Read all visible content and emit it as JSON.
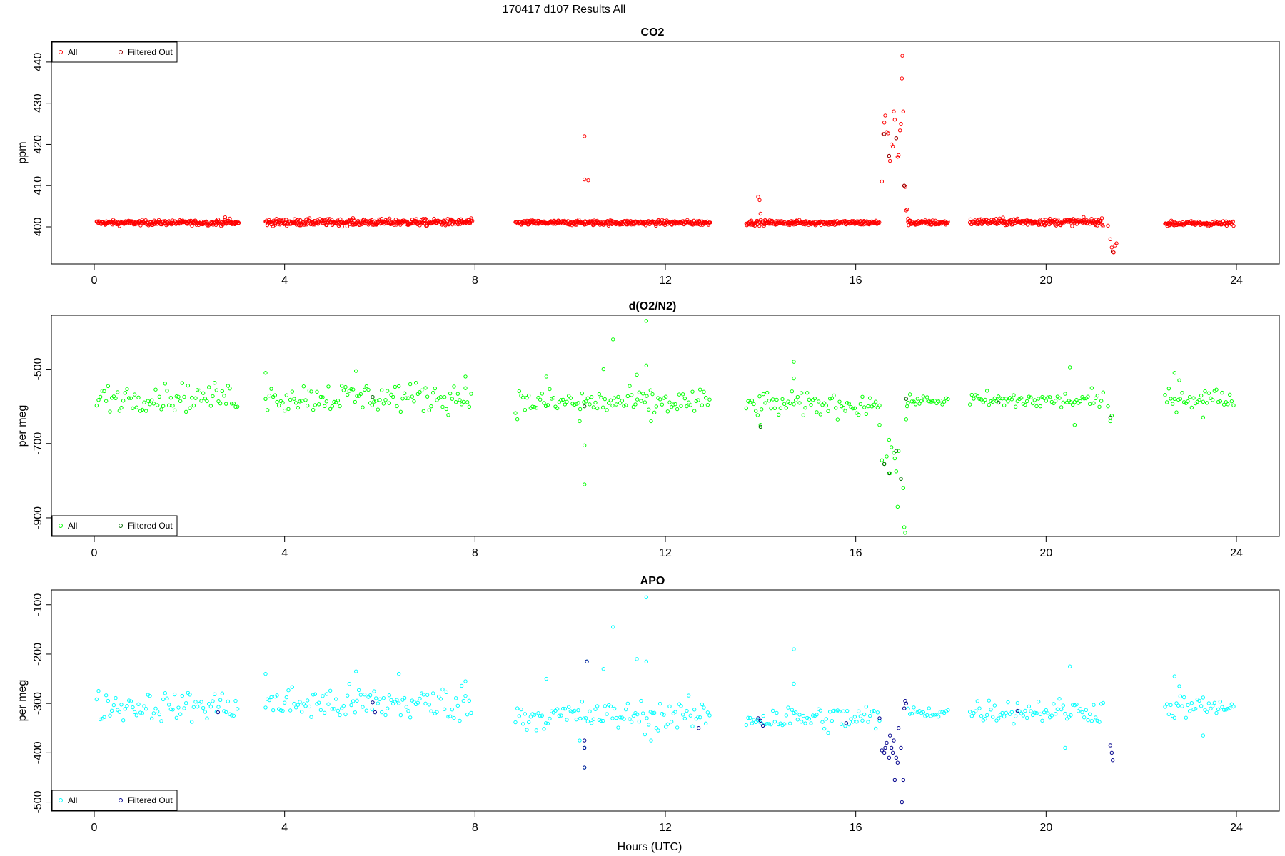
{
  "figure": {
    "title": "170417   d107   Results All",
    "xlabel": "Hours (UTC)"
  },
  "chart_data": [
    {
      "type": "scatter",
      "title": "CO2",
      "ylabel": "ppm",
      "xlim": [
        -0.9,
        24.9
      ],
      "ylim": [
        391,
        445
      ],
      "xticks": [
        0,
        4,
        8,
        12,
        16,
        20,
        24
      ],
      "yticks": [
        400,
        410,
        420,
        430,
        440
      ],
      "legend_position": "top-left",
      "series": [
        {
          "name": "All",
          "color": "#ff0000",
          "segments": [
            {
              "start": 0.05,
              "end": 3.05,
              "base": 401,
              "noise": 0.3,
              "step": 0.012
            },
            {
              "start": 3.6,
              "end": 7.95,
              "base": 401.1,
              "noise": 0.4,
              "step": 0.012
            },
            {
              "start": 8.85,
              "end": 12.95,
              "base": 401,
              "noise": 0.3,
              "step": 0.012
            },
            {
              "start": 13.7,
              "end": 16.5,
              "base": 401,
              "noise": 0.3,
              "step": 0.012
            },
            {
              "start": 17.1,
              "end": 17.95,
              "base": 401,
              "noise": 0.3,
              "step": 0.012
            },
            {
              "start": 18.4,
              "end": 21.2,
              "base": 401.2,
              "noise": 0.4,
              "step": 0.012
            },
            {
              "start": 22.5,
              "end": 23.95,
              "base": 400.8,
              "noise": 0.3,
              "step": 0.012
            }
          ],
          "points": [
            [
              2.6,
              401.8
            ],
            [
              2.75,
              402.3
            ],
            [
              2.85,
              402
            ],
            [
              5.8,
              401.5
            ],
            [
              6.4,
              401.4
            ],
            [
              12.6,
              401.5
            ],
            [
              19,
              401.4
            ],
            [
              19.4,
              402
            ],
            [
              10.3,
              422
            ],
            [
              10.3,
              411.5
            ],
            [
              10.38,
              411.3
            ],
            [
              13.95,
              407.3
            ],
            [
              13.98,
              406.5
            ],
            [
              14.0,
              403.2
            ],
            [
              16.55,
              411
            ],
            [
              16.58,
              422.5
            ],
            [
              16.6,
              425.3
            ],
            [
              16.62,
              427
            ],
            [
              16.65,
              423
            ],
            [
              16.68,
              422.7
            ],
            [
              16.7,
              417.2
            ],
            [
              16.72,
              416
            ],
            [
              16.75,
              420
            ],
            [
              16.78,
              419.5
            ],
            [
              16.8,
              428
            ],
            [
              16.82,
              426
            ],
            [
              16.85,
              421.5
            ],
            [
              16.88,
              417
            ],
            [
              16.9,
              417.4
            ],
            [
              16.93,
              423.4
            ],
            [
              16.95,
              425
            ],
            [
              16.97,
              436
            ],
            [
              16.98,
              441.5
            ],
            [
              17.0,
              428
            ],
            [
              17.02,
              410
            ],
            [
              17.04,
              409.7
            ],
            [
              17.06,
              404
            ],
            [
              17.08,
              404.2
            ],
            [
              17.1,
              402
            ],
            [
              21.3,
              400.3
            ],
            [
              21.35,
              397
            ],
            [
              21.38,
              395
            ],
            [
              21.4,
              394
            ],
            [
              21.42,
              393.8
            ],
            [
              21.45,
              395.5
            ],
            [
              21.48,
              396
            ]
          ]
        },
        {
          "name": "Filtered Out",
          "color": "#8b0000",
          "segments": [],
          "points": [
            [
              16.6,
              422.5
            ],
            [
              16.7,
              417.2
            ],
            [
              16.85,
              421.5
            ],
            [
              17.02,
              410
            ],
            [
              21.4,
              394
            ]
          ]
        }
      ]
    },
    {
      "type": "scatter",
      "title": "d(O2/N2)",
      "ylabel": "per meg",
      "xlim": [
        -0.9,
        24.9
      ],
      "ylim": [
        -950,
        -355
      ],
      "xticks": [
        0,
        4,
        8,
        12,
        16,
        20,
        24
      ],
      "yticks": [
        -500,
        -700,
        -900
      ],
      "legend_position": "bottom-left",
      "series": [
        {
          "name": "All",
          "color": "#00ff00",
          "segments": [
            {
              "start": 0.05,
              "end": 3.05,
              "base": -575,
              "noise": 18,
              "step": 0.04
            },
            {
              "start": 3.6,
              "end": 7.95,
              "base": -575,
              "noise": 20,
              "step": 0.04
            },
            {
              "start": 8.85,
              "end": 12.95,
              "base": -590,
              "noise": 18,
              "step": 0.04
            },
            {
              "start": 13.7,
              "end": 16.5,
              "base": -595,
              "noise": 16,
              "step": 0.04
            },
            {
              "start": 17.1,
              "end": 17.95,
              "base": -585,
              "noise": 6,
              "step": 0.04
            },
            {
              "start": 18.4,
              "end": 21.2,
              "base": -585,
              "noise": 12,
              "step": 0.04
            },
            {
              "start": 22.5,
              "end": 23.95,
              "base": -578,
              "noise": 14,
              "step": 0.04
            }
          ],
          "points": [
            [
              3.6,
              -510
            ],
            [
              5.5,
              -505
            ],
            [
              7.8,
              -520
            ],
            [
              9.5,
              -520
            ],
            [
              10.2,
              -640
            ],
            [
              10.3,
              -705
            ],
            [
              10.3,
              -810
            ],
            [
              10.7,
              -500
            ],
            [
              10.9,
              -420
            ],
            [
              11.4,
              -515
            ],
            [
              11.6,
              -370
            ],
            [
              11.6,
              -490
            ],
            [
              11.7,
              -640
            ],
            [
              14.0,
              -650
            ],
            [
              14.7,
              -480
            ],
            [
              14.7,
              -525
            ],
            [
              16.5,
              -650
            ],
            [
              16.55,
              -745
            ],
            [
              16.6,
              -755
            ],
            [
              16.65,
              -735
            ],
            [
              16.7,
              -690
            ],
            [
              16.72,
              -780
            ],
            [
              16.75,
              -710
            ],
            [
              16.8,
              -725
            ],
            [
              16.82,
              -740
            ],
            [
              16.85,
              -775
            ],
            [
              16.88,
              -870
            ],
            [
              16.9,
              -720
            ],
            [
              16.95,
              -795
            ],
            [
              17.0,
              -820
            ],
            [
              17.02,
              -925
            ],
            [
              17.04,
              -940
            ],
            [
              17.06,
              -635
            ],
            [
              17.08,
              -600
            ],
            [
              20.5,
              -495
            ],
            [
              20.6,
              -650
            ],
            [
              21.3,
              -600
            ],
            [
              21.35,
              -640
            ],
            [
              21.38,
              -625
            ],
            [
              22.7,
              -510
            ],
            [
              22.8,
              -530
            ],
            [
              23.3,
              -630
            ]
          ]
        },
        {
          "name": "Filtered Out",
          "color": "#006400",
          "segments": [],
          "points": [
            [
              5.85,
              -575
            ],
            [
              10.3,
              -600
            ],
            [
              14.0,
              -655
            ],
            [
              16.6,
              -755
            ],
            [
              16.7,
              -780
            ],
            [
              16.85,
              -720
            ],
            [
              16.95,
              -795
            ],
            [
              17.06,
              -580
            ],
            [
              19.0,
              -590
            ],
            [
              21.35,
              -630
            ]
          ]
        }
      ]
    },
    {
      "type": "scatter",
      "title": "APO",
      "ylabel": "per meg",
      "xlim": [
        -0.9,
        24.9
      ],
      "ylim": [
        -518,
        -70
      ],
      "xticks": [
        0,
        4,
        8,
        12,
        16,
        20,
        24
      ],
      "yticks": [
        -100,
        -200,
        -300,
        -400,
        -500
      ],
      "legend_position": "bottom-left",
      "series": [
        {
          "name": "All",
          "color": "#00ffff",
          "segments": [
            {
              "start": 0.05,
              "end": 3.05,
              "base": -305,
              "noise": 15,
              "step": 0.04
            },
            {
              "start": 3.6,
              "end": 7.95,
              "base": -300,
              "noise": 18,
              "step": 0.04
            },
            {
              "start": 8.85,
              "end": 12.95,
              "base": -325,
              "noise": 15,
              "step": 0.04
            },
            {
              "start": 13.7,
              "end": 16.5,
              "base": -330,
              "noise": 14,
              "step": 0.04
            },
            {
              "start": 17.1,
              "end": 17.95,
              "base": -318,
              "noise": 6,
              "step": 0.04
            },
            {
              "start": 18.4,
              "end": 21.2,
              "base": -315,
              "noise": 12,
              "step": 0.04
            },
            {
              "start": 22.5,
              "end": 23.95,
              "base": -308,
              "noise": 12,
              "step": 0.04
            }
          ],
          "points": [
            [
              3.6,
              -240
            ],
            [
              5.5,
              -235
            ],
            [
              6.4,
              -240
            ],
            [
              7.8,
              -255
            ],
            [
              9.5,
              -250
            ],
            [
              10.2,
              -375
            ],
            [
              10.3,
              -390
            ],
            [
              10.3,
              -430
            ],
            [
              10.35,
              -215
            ],
            [
              10.9,
              -145
            ],
            [
              10.7,
              -230
            ],
            [
              11.4,
              -210
            ],
            [
              11.6,
              -85
            ],
            [
              11.6,
              -215
            ],
            [
              11.7,
              -375
            ],
            [
              14.7,
              -190
            ],
            [
              14.7,
              -260
            ],
            [
              20.5,
              -225
            ],
            [
              20.4,
              -390
            ],
            [
              22.7,
              -245
            ],
            [
              22.8,
              -265
            ],
            [
              23.3,
              -365
            ]
          ]
        },
        {
          "name": "Filtered Out",
          "color": "#00008b",
          "segments": [],
          "points": [
            [
              2.6,
              -318
            ],
            [
              5.85,
              -298
            ],
            [
              5.9,
              -318
            ],
            [
              10.3,
              -375
            ],
            [
              10.3,
              -390
            ],
            [
              10.35,
              -215
            ],
            [
              10.3,
              -430
            ],
            [
              12.7,
              -350
            ],
            [
              13.95,
              -330
            ],
            [
              14.0,
              -335
            ],
            [
              14.05,
              -345
            ],
            [
              15.8,
              -340
            ],
            [
              16.5,
              -330
            ],
            [
              16.55,
              -395
            ],
            [
              16.6,
              -400
            ],
            [
              16.62,
              -390
            ],
            [
              16.65,
              -380
            ],
            [
              16.7,
              -410
            ],
            [
              16.72,
              -365
            ],
            [
              16.75,
              -390
            ],
            [
              16.78,
              -400
            ],
            [
              16.8,
              -375
            ],
            [
              16.82,
              -455
            ],
            [
              16.85,
              -410
            ],
            [
              16.88,
              -420
            ],
            [
              16.9,
              -350
            ],
            [
              16.95,
              -390
            ],
            [
              16.97,
              -500
            ],
            [
              17.0,
              -455
            ],
            [
              17.02,
              -310
            ],
            [
              17.04,
              -295
            ],
            [
              17.06,
              -300
            ],
            [
              19.4,
              -315
            ],
            [
              21.35,
              -385
            ],
            [
              21.38,
              -400
            ],
            [
              21.4,
              -415
            ]
          ]
        }
      ]
    }
  ]
}
